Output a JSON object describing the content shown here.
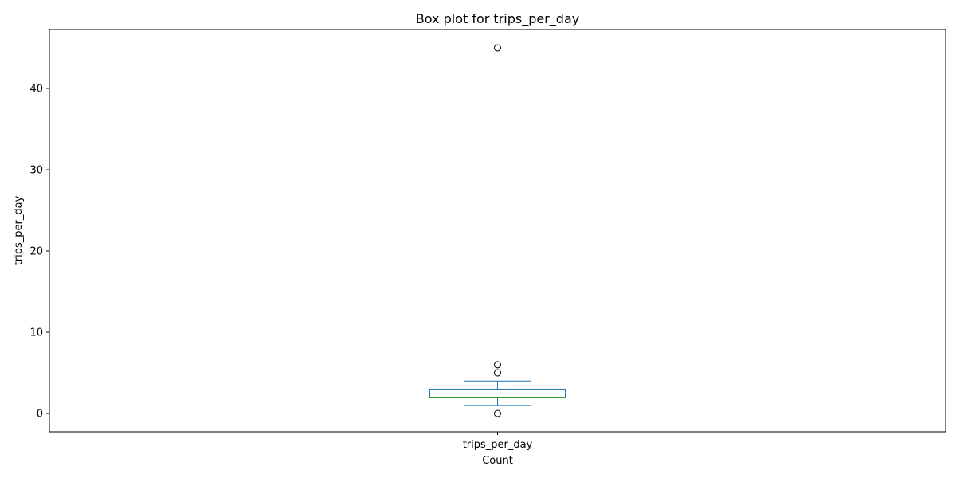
{
  "chart_data": {
    "type": "box",
    "title": "Box plot for trips_per_day",
    "xlabel": "Count",
    "ylabel": "trips_per_day",
    "categories": [
      "trips_per_day"
    ],
    "ylim": [
      -2.25,
      47.25
    ],
    "yticks": [
      0,
      10,
      20,
      30,
      40
    ],
    "grid": false,
    "boxes": [
      {
        "name": "trips_per_day",
        "whisker_low": 1,
        "q1": 2,
        "median": 2,
        "q3": 3,
        "whisker_high": 4,
        "outliers": [
          0,
          5,
          6,
          45
        ]
      }
    ],
    "colors": {
      "box": "#1f77b4",
      "median": "#2ca02c",
      "outlier_edge": "#000000"
    }
  }
}
